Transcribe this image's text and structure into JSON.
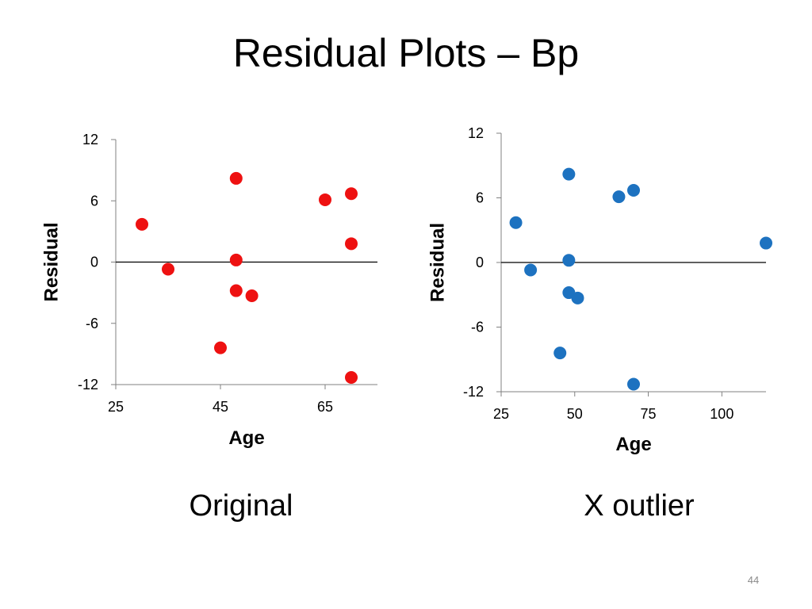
{
  "slide": {
    "title": "Residual Plots – Bp",
    "page_number": "44",
    "captions": [
      "Original",
      "X outlier"
    ]
  },
  "chart_data": [
    {
      "type": "scatter",
      "title": "",
      "xlabel": "Age",
      "ylabel": "Residual",
      "xlim": [
        25,
        75
      ],
      "ylim": [
        -12,
        12
      ],
      "xticks": [
        25,
        45,
        65
      ],
      "yticks": [
        12,
        6,
        0,
        -6,
        -12
      ],
      "reference_line_y": 0,
      "grid": false,
      "legend": "none",
      "marker_color": "#ee1111",
      "series": [
        {
          "x": [
            30,
            35,
            45,
            48,
            48,
            48,
            51,
            65,
            70,
            70,
            70
          ],
          "y": [
            3.7,
            -0.7,
            -8.4,
            8.2,
            0.2,
            -2.8,
            -3.3,
            6.1,
            6.7,
            1.8,
            -11.3
          ]
        }
      ]
    },
    {
      "type": "scatter",
      "title": "",
      "xlabel": "Age",
      "ylabel": "Residual",
      "xlim": [
        25,
        115
      ],
      "ylim": [
        -12,
        12
      ],
      "xticks": [
        25,
        50,
        75,
        100
      ],
      "yticks": [
        12,
        6,
        0,
        -6,
        -12
      ],
      "reference_line_y": 0,
      "grid": false,
      "legend": "none",
      "marker_color": "#1d72c0",
      "series": [
        {
          "x": [
            30,
            35,
            45,
            48,
            48,
            48,
            51,
            65,
            70,
            115,
            70
          ],
          "y": [
            3.7,
            -0.7,
            -8.4,
            8.2,
            0.2,
            -2.8,
            -3.3,
            6.1,
            6.7,
            1.8,
            -11.3
          ]
        }
      ]
    }
  ]
}
